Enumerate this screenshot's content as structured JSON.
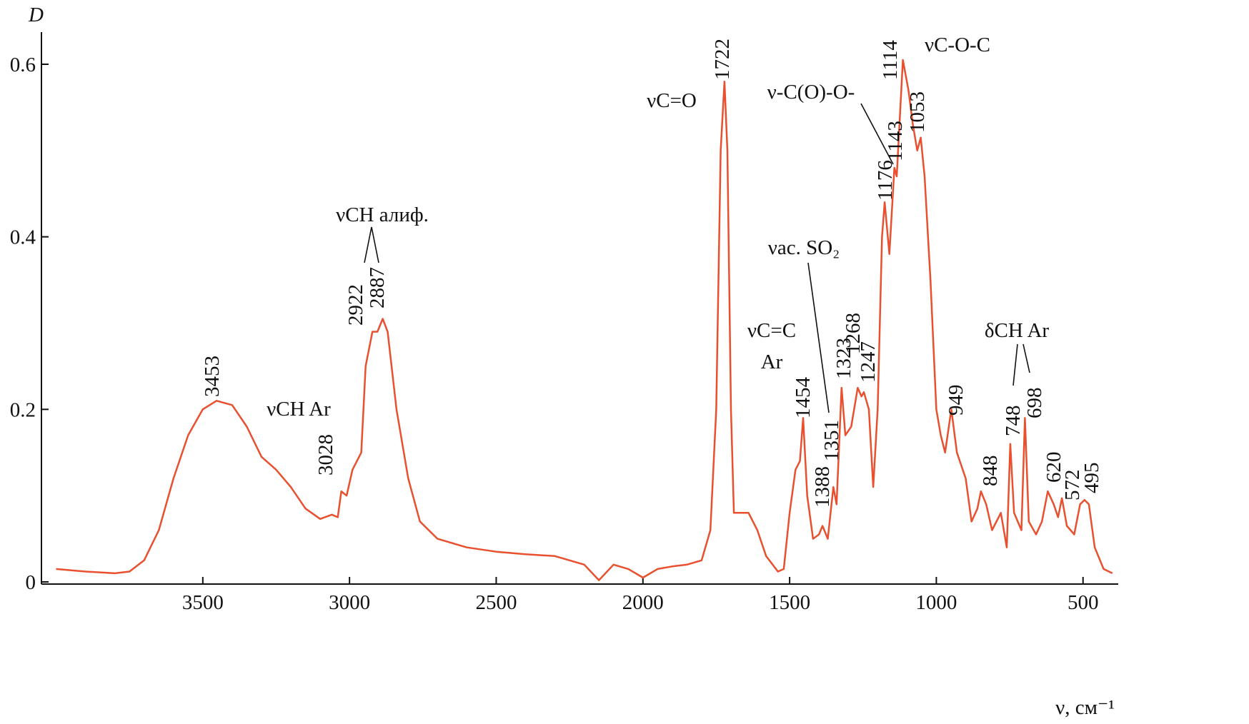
{
  "chart_data": {
    "type": "line",
    "y_label": "D",
    "x_label": "ν, см⁻¹",
    "xlim": [
      4050,
      380
    ],
    "ylim": [
      0,
      0.635
    ],
    "xticks": [
      3500,
      3000,
      2500,
      2000,
      1500,
      1000,
      500
    ],
    "yticks": [
      0,
      0.2,
      0.4,
      0.6
    ],
    "grid": false,
    "series": [
      {
        "color": "#e8502f",
        "x": [
          4000,
          3900,
          3800,
          3750,
          3700,
          3650,
          3600,
          3550,
          3500,
          3453,
          3400,
          3350,
          3300,
          3250,
          3200,
          3150,
          3100,
          3060,
          3040,
          3028,
          3010,
          2990,
          2960,
          2945,
          2922,
          2905,
          2887,
          2870,
          2840,
          2800,
          2760,
          2700,
          2600,
          2500,
          2400,
          2300,
          2200,
          2150,
          2100,
          2050,
          2000,
          1950,
          1900,
          1850,
          1800,
          1770,
          1750,
          1735,
          1722,
          1712,
          1700,
          1690,
          1670,
          1640,
          1610,
          1580,
          1540,
          1520,
          1500,
          1480,
          1465,
          1454,
          1440,
          1420,
          1400,
          1388,
          1370,
          1351,
          1340,
          1323,
          1310,
          1290,
          1268,
          1255,
          1247,
          1230,
          1215,
          1200,
          1185,
          1176,
          1160,
          1143,
          1135,
          1114,
          1095,
          1080,
          1065,
          1053,
          1040,
          1020,
          1000,
          985,
          970,
          949,
          930,
          900,
          880,
          860,
          848,
          830,
          810,
          780,
          760,
          748,
          735,
          710,
          698,
          685,
          660,
          640,
          620,
          600,
          585,
          572,
          555,
          530,
          510,
          495,
          480,
          460,
          430,
          400
        ],
        "values": [
          0.015,
          0.012,
          0.01,
          0.012,
          0.025,
          0.06,
          0.12,
          0.17,
          0.2,
          0.21,
          0.205,
          0.18,
          0.145,
          0.13,
          0.11,
          0.085,
          0.073,
          0.078,
          0.075,
          0.105,
          0.1,
          0.13,
          0.15,
          0.25,
          0.29,
          0.29,
          0.305,
          0.29,
          0.2,
          0.12,
          0.07,
          0.05,
          0.04,
          0.035,
          0.032,
          0.03,
          0.02,
          0.002,
          0.02,
          0.015,
          0.005,
          0.015,
          0.018,
          0.02,
          0.025,
          0.06,
          0.2,
          0.5,
          0.58,
          0.5,
          0.2,
          0.08,
          0.08,
          0.08,
          0.06,
          0.03,
          0.012,
          0.015,
          0.08,
          0.13,
          0.14,
          0.19,
          0.1,
          0.05,
          0.055,
          0.065,
          0.05,
          0.11,
          0.09,
          0.225,
          0.17,
          0.18,
          0.225,
          0.215,
          0.22,
          0.2,
          0.11,
          0.2,
          0.4,
          0.44,
          0.38,
          0.48,
          0.47,
          0.605,
          0.57,
          0.53,
          0.5,
          0.515,
          0.47,
          0.35,
          0.2,
          0.17,
          0.15,
          0.2,
          0.15,
          0.12,
          0.07,
          0.085,
          0.105,
          0.09,
          0.06,
          0.08,
          0.04,
          0.16,
          0.08,
          0.06,
          0.19,
          0.07,
          0.055,
          0.07,
          0.105,
          0.09,
          0.075,
          0.097,
          0.065,
          0.055,
          0.09,
          0.095,
          0.09,
          0.04,
          0.015,
          0.01
        ]
      }
    ],
    "peak_labels": [
      "3453",
      "3028",
      "2922",
      "2887",
      "1722",
      "1454",
      "1388",
      "1351",
      "1323",
      "1268",
      "1247",
      "1176",
      "1143",
      "1114",
      "1053",
      "949",
      "848",
      "748",
      "698",
      "620",
      "572",
      "495"
    ],
    "annotations": [
      "νC=O",
      "νCH алиф.",
      "νCH Ar",
      "νC=C",
      "Ar",
      "νас. SO₂",
      "ν-C(O)-O-",
      "νC-O-C",
      "δCH Ar"
    ]
  }
}
